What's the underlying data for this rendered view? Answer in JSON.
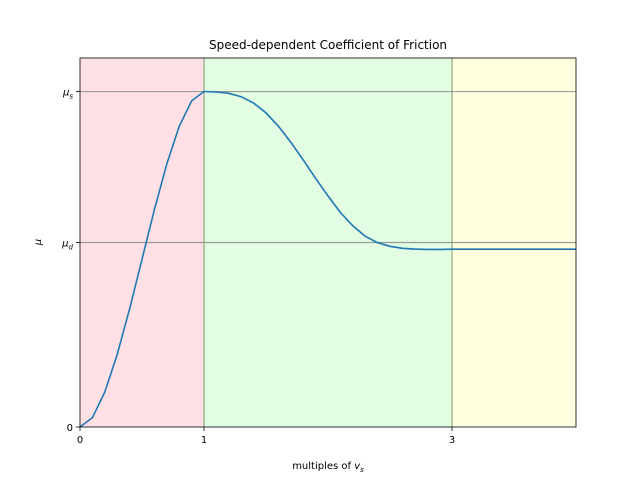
{
  "chart_data": {
    "type": "line",
    "title": "Speed-dependent Coefficient of Friction",
    "xlabel": {
      "text": "multiples of ",
      "var": "v",
      "sub": "s"
    },
    "ylabel": "μ",
    "xlim": [
      0,
      4
    ],
    "ylim": [
      0,
      1.1
    ],
    "x_ticks": [
      {
        "value": 0,
        "label": "0"
      },
      {
        "value": 1,
        "label": "1"
      },
      {
        "value": 3,
        "label": "3"
      }
    ],
    "y_ticks": [
      {
        "value": 0,
        "label": "0",
        "sub": ""
      },
      {
        "value": 0.55,
        "label": "μ",
        "sub": "d"
      },
      {
        "value": 1.0,
        "label": "μ",
        "sub": "s"
      }
    ],
    "reference_lines": {
      "horizontal": [
        0.55,
        1.0
      ],
      "vertical": [
        1,
        3
      ]
    },
    "regions": [
      {
        "from": 0,
        "to": 1,
        "color": "#ffe1e5"
      },
      {
        "from": 1,
        "to": 3,
        "color": "#e2fde2"
      },
      {
        "from": 3,
        "to": 4,
        "color": "#ffffe0"
      }
    ],
    "series": [
      {
        "color": "#1f77b4",
        "x": [
          0,
          0.1,
          0.2,
          0.3,
          0.4,
          0.5,
          0.6,
          0.7,
          0.8,
          0.9,
          1.0,
          1.1,
          1.2,
          1.3,
          1.4,
          1.5,
          1.6,
          1.7,
          1.8,
          1.9,
          2.0,
          2.1,
          2.2,
          2.3,
          2.4,
          2.5,
          2.6,
          2.7,
          2.8,
          2.9,
          3.0,
          3.25,
          3.5,
          3.75,
          4.0
        ],
        "y": [
          0.0,
          0.028,
          0.104,
          0.216,
          0.352,
          0.5,
          0.648,
          0.784,
          0.896,
          0.972,
          1.0,
          0.9986,
          0.9947,
          0.9847,
          0.9657,
          0.9363,
          0.8968,
          0.8491,
          0.7961,
          0.7415,
          0.6888,
          0.6394,
          0.5998,
          0.5688,
          0.5495,
          0.5386,
          0.5328,
          0.5303,
          0.5295,
          0.5293,
          0.53,
          0.53,
          0.53,
          0.53,
          0.53
        ]
      }
    ]
  }
}
